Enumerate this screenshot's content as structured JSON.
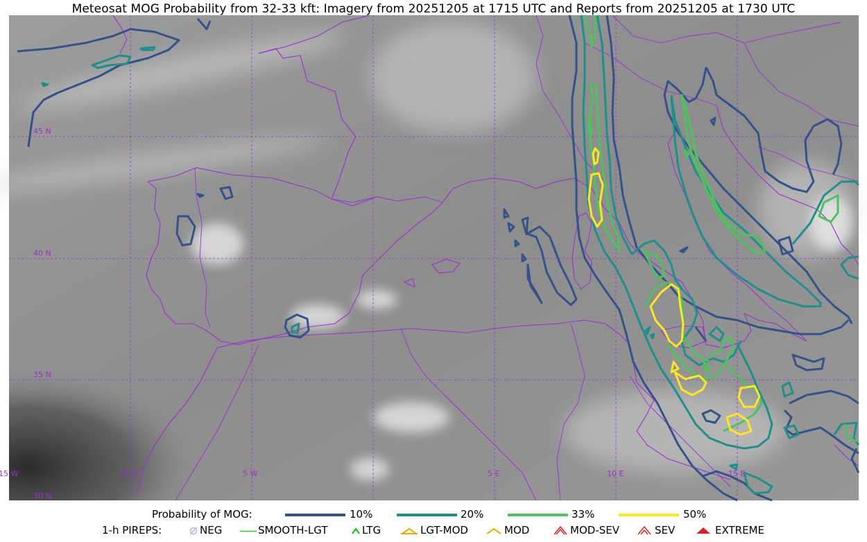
{
  "title": "Meteosat MOG Probability from 32-33 kft: Imagery from 20251205 at 1715 UTC and Reports from 20251205 at 1730 UTC",
  "map": {
    "lat_labels": [
      "45 N",
      "40 N",
      "35 N",
      "30 N"
    ],
    "lon_labels": [
      "15 W",
      "10 W",
      "5 W",
      "5 E",
      "10 E",
      "15 E"
    ],
    "border_color": "#9b30d0",
    "grid_color": "#9b30d0"
  },
  "legend": {
    "probability": {
      "label": "Probability of MOG:",
      "items": [
        {
          "label": "10%",
          "color": "#34518a"
        },
        {
          "label": "20%",
          "color": "#1f8f8a"
        },
        {
          "label": "33%",
          "color": "#4ec25e"
        },
        {
          "label": "50%",
          "color": "#fde725"
        }
      ]
    },
    "pireps": {
      "label": "1-h PIREPS:",
      "items": [
        {
          "label": "NEG",
          "color": "#b4b4f0",
          "icon": "neg-icon"
        },
        {
          "label": "SMOOTH-LGT",
          "color": "#2ecc2e",
          "icon": "smooth-lgt-icon"
        },
        {
          "label": "LTG",
          "color": "#00cc00",
          "icon": "ltg-icon"
        },
        {
          "label": "LGT-MOD",
          "color": "#f0a800",
          "icon": "lgt-mod-icon"
        },
        {
          "label": "MOD",
          "color": "#f0a800",
          "icon": "mod-icon"
        },
        {
          "label": "MOD-SEV",
          "color": "#e02020",
          "icon": "mod-sev-icon"
        },
        {
          "label": "SEV",
          "color": "#e02020",
          "icon": "sev-icon"
        },
        {
          "label": "EXTREME",
          "color": "#e02020",
          "icon": "extreme-icon"
        }
      ]
    }
  }
}
